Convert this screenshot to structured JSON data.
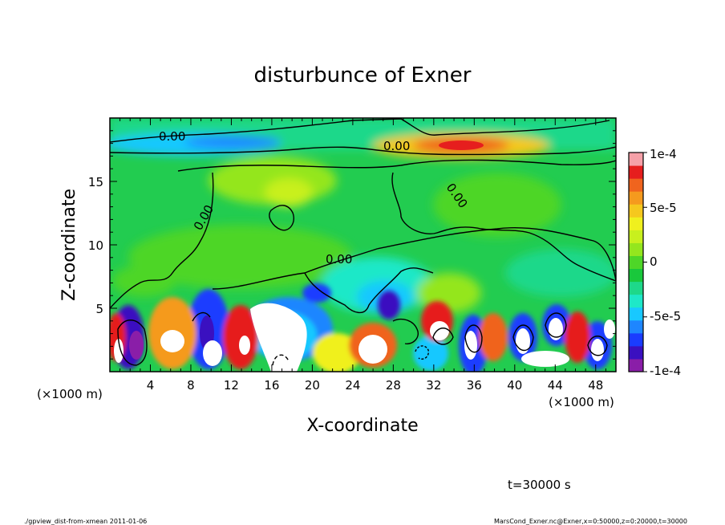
{
  "chart_data": {
    "type": "heatmap",
    "title": "disturbunce of Exner",
    "xlabel": "X-coordinate",
    "ylabel": "Z-coordinate",
    "x_unit": "(×1000 m)",
    "x_unit_right": "(×1000 m)",
    "xlim": [
      0,
      50
    ],
    "ylim": [
      0,
      20
    ],
    "x_ticks": [
      "4",
      "8",
      "12",
      "16",
      "20",
      "24",
      "28",
      "32",
      "36",
      "40",
      "44",
      "48"
    ],
    "y_ticks": [
      "5",
      "10",
      "15"
    ],
    "contour_labels": [
      "0.00",
      "0.00",
      "0.00",
      "0.00",
      "0.00"
    ],
    "colorbar": {
      "range": [
        -0.0001,
        0.0001
      ],
      "tick_labels": [
        "1e-4",
        "5e-5",
        "0",
        "-5e-5",
        "-1e-4"
      ],
      "colors": [
        "#8a1ea8",
        "#3a10c0",
        "#1a3cff",
        "#1e86ff",
        "#18c8ff",
        "#1ee8c8",
        "#1ed88a",
        "#19c83c",
        "#4ed628",
        "#94e61e",
        "#c8f01e",
        "#f0f01e",
        "#f5c81e",
        "#f59a1e",
        "#f0641e",
        "#e61e1e",
        "#f5a0a8"
      ]
    },
    "features": [
      {
        "name": "upper positive anomaly",
        "x": 35,
        "z": 17.7,
        "value": 7e-05
      },
      {
        "name": "upper negative band",
        "x": 12,
        "z": 17.8,
        "value": -3e-05
      }
    ]
  },
  "annotations": {
    "time": "t=30000 s",
    "footer_left": "./gpview_dist-from-xmean  2011-01-06",
    "footer_right": "MarsCond_Exner.nc@Exner,x=0:50000,z=0:20000,t=30000"
  }
}
